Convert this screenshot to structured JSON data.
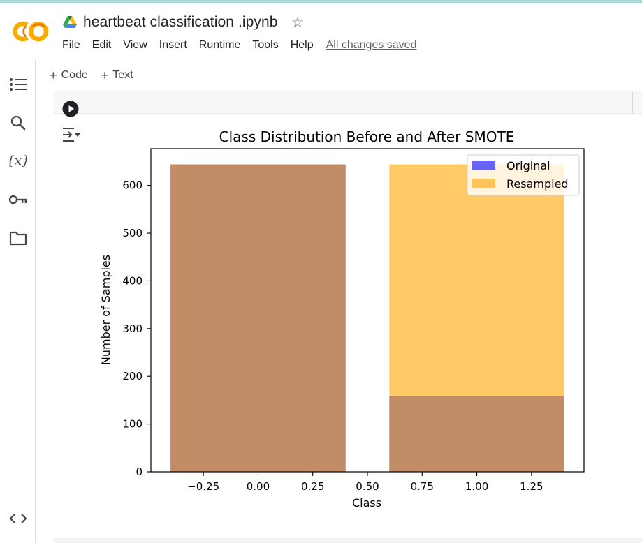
{
  "app": {
    "logo": "colab-logo",
    "notebook_title": "heartbeat classification .ipynb",
    "drive_icon": "google-drive-icon",
    "star_icon": "star-icon",
    "menu": [
      "File",
      "Edit",
      "View",
      "Insert",
      "Runtime",
      "Tools",
      "Help"
    ],
    "save_status": "All changes saved"
  },
  "sidebar": {
    "items": [
      {
        "icon": "table-of-contents-icon"
      },
      {
        "icon": "search-icon"
      },
      {
        "icon": "variables-icon",
        "label": "{x}"
      },
      {
        "icon": "secrets-key-icon"
      },
      {
        "icon": "folder-icon"
      }
    ],
    "bottom_icon": "code-snippets-icon"
  },
  "toolbar": {
    "add_code": "Code",
    "add_text": "Text"
  },
  "cell": {
    "run_icon": "play-circle-icon",
    "output_icon": "output-actions-icon"
  },
  "colors": {
    "original": "#0000ff",
    "resampled": "#ffa500",
    "overlap": "#c28a64",
    "colab_orange": "#f9ab00"
  },
  "chart_data": {
    "type": "bar",
    "title": "Class Distribution Before and After SMOTE",
    "xlabel": "Class",
    "ylabel": "Number of Samples",
    "xlim": [
      -0.49,
      1.49
    ],
    "ylim": [
      0,
      677
    ],
    "x_ticks": [
      -0.25,
      0.0,
      0.25,
      0.5,
      0.75,
      1.0,
      1.25
    ],
    "x_tick_labels": [
      "−0.25",
      "0.00",
      "0.25",
      "0.50",
      "0.75",
      "1.00",
      "1.25"
    ],
    "y_ticks": [
      0,
      100,
      200,
      300,
      400,
      500,
      600
    ],
    "y_tick_labels": [
      "0",
      "100",
      "200",
      "300",
      "400",
      "500",
      "600"
    ],
    "categories": [
      0,
      1
    ],
    "bar_width": 0.8,
    "legend_position": "upper right",
    "series": [
      {
        "name": "Original",
        "values": [
          644,
          158
        ],
        "color": "#0000ff",
        "alpha": 0.6
      },
      {
        "name": "Resampled",
        "values": [
          644,
          644
        ],
        "color": "#ffa500",
        "alpha": 0.6
      }
    ]
  }
}
